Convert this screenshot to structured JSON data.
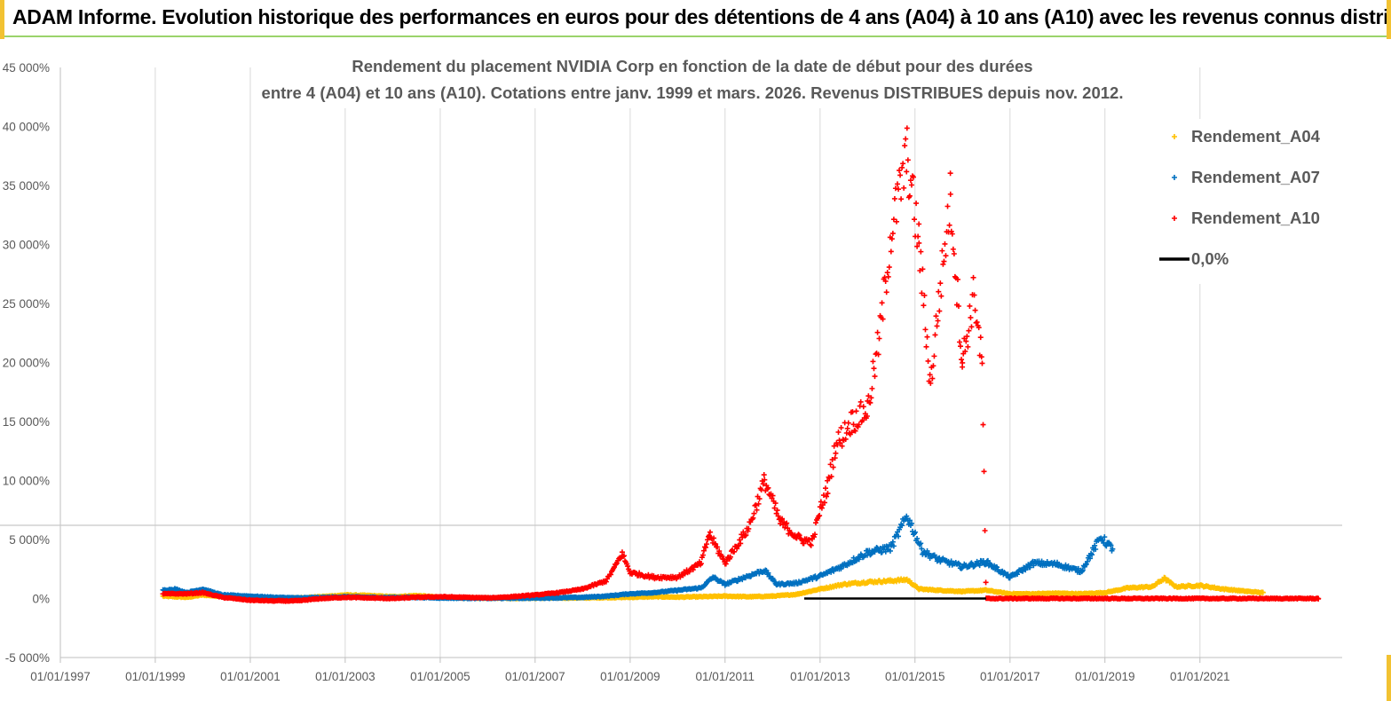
{
  "banner": {
    "title": "ADAM Informe. Evolution historique des performances en euros pour des détentions de 4 ans (A04) à 10 ans (A10) avec les revenus connus distribués"
  },
  "colors": {
    "A04": "#ffc000",
    "A07": "#0070c0",
    "A10": "#ff0000",
    "zero": "#000000",
    "grid": "#d9d9d9",
    "banner_border": "#9bd36b"
  },
  "chart_data": {
    "type": "scatter",
    "title_line1": "Rendement du placement NVIDIA Corp en fonction de la date de début pour des durées",
    "title_line2": "entre 4 (A04) et 10 ans (A10).  Cotations entre janv. 1999 et mars. 2026. Revenus DISTRIBUES depuis nov. 2012.",
    "y_ticks": [
      "45 000%",
      "40 000%",
      "35 000%",
      "30 000%",
      "25 000%",
      "20 000%",
      "15 000%",
      "10 000%",
      "5 000%",
      "0%",
      "-5 000%"
    ],
    "x_ticks": [
      "01/01/1997",
      "01/01/1999",
      "01/01/2001",
      "01/01/2003",
      "01/01/2005",
      "01/01/2007",
      "01/01/2009",
      "01/01/2011",
      "01/01/2013",
      "01/01/2015",
      "01/01/2017",
      "01/01/2019",
      "01/01/2021"
    ],
    "ylim": [
      -5000,
      45000
    ],
    "xlim": [
      "1997-01-01",
      "2023-12-31"
    ],
    "legend_position": "top-right",
    "grid": "vertical",
    "series": [
      {
        "name": "Rendement_A04",
        "marker": "+",
        "points": [
          [
            "1999-03-01",
            200
          ],
          [
            "1999-09-01",
            100
          ],
          [
            "2000-01-01",
            300
          ],
          [
            "2000-07-01",
            150
          ],
          [
            "2001-01-01",
            100
          ],
          [
            "2001-07-01",
            0
          ],
          [
            "2002-01-01",
            50
          ],
          [
            "2002-07-01",
            150
          ],
          [
            "2003-01-01",
            300
          ],
          [
            "2003-07-01",
            250
          ],
          [
            "2004-01-01",
            150
          ],
          [
            "2004-07-01",
            250
          ],
          [
            "2005-01-01",
            100
          ],
          [
            "2005-07-01",
            50
          ],
          [
            "2006-01-01",
            50
          ],
          [
            "2006-07-01",
            20
          ],
          [
            "2007-01-01",
            30
          ],
          [
            "2007-07-01",
            50
          ],
          [
            "2008-01-01",
            50
          ],
          [
            "2008-07-01",
            80
          ],
          [
            "2009-01-01",
            100
          ],
          [
            "2009-07-01",
            150
          ],
          [
            "2010-01-01",
            120
          ],
          [
            "2010-07-01",
            150
          ],
          [
            "2011-01-01",
            200
          ],
          [
            "2011-07-01",
            150
          ],
          [
            "2012-01-01",
            200
          ],
          [
            "2012-07-01",
            350
          ],
          [
            "2013-01-01",
            800
          ],
          [
            "2013-07-01",
            1200
          ],
          [
            "2014-01-01",
            1400
          ],
          [
            "2014-07-01",
            1500
          ],
          [
            "2014-11-01",
            1600
          ],
          [
            "2015-02-01",
            800
          ],
          [
            "2015-07-01",
            700
          ],
          [
            "2016-01-01",
            600
          ],
          [
            "2016-07-01",
            700
          ],
          [
            "2017-01-01",
            400
          ],
          [
            "2017-07-01",
            400
          ],
          [
            "2018-01-01",
            450
          ],
          [
            "2018-07-01",
            400
          ],
          [
            "2019-01-01",
            500
          ],
          [
            "2019-07-01",
            900
          ],
          [
            "2020-01-01",
            1000
          ],
          [
            "2020-04-01",
            1700
          ],
          [
            "2020-07-01",
            1000
          ],
          [
            "2021-01-01",
            1100
          ],
          [
            "2021-07-01",
            800
          ],
          [
            "2022-01-01",
            600
          ],
          [
            "2022-05-01",
            500
          ]
        ]
      },
      {
        "name": "Rendement_A07",
        "marker": "+",
        "points": [
          [
            "1999-03-01",
            700
          ],
          [
            "1999-06-01",
            800
          ],
          [
            "1999-09-01",
            500
          ],
          [
            "2000-01-01",
            800
          ],
          [
            "2000-06-01",
            300
          ],
          [
            "2001-01-01",
            200
          ],
          [
            "2001-07-01",
            100
          ],
          [
            "2002-01-01",
            50
          ],
          [
            "2002-07-01",
            80
          ],
          [
            "2003-01-01",
            150
          ],
          [
            "2003-07-01",
            100
          ],
          [
            "2004-01-01",
            80
          ],
          [
            "2004-07-01",
            100
          ],
          [
            "2005-01-01",
            50
          ],
          [
            "2005-07-01",
            30
          ],
          [
            "2006-01-01",
            20
          ],
          [
            "2006-07-01",
            30
          ],
          [
            "2007-01-01",
            40
          ],
          [
            "2007-07-01",
            60
          ],
          [
            "2008-01-01",
            100
          ],
          [
            "2008-07-01",
            200
          ],
          [
            "2009-01-01",
            400
          ],
          [
            "2009-07-01",
            500
          ],
          [
            "2010-01-01",
            700
          ],
          [
            "2010-07-01",
            900
          ],
          [
            "2010-10-01",
            1800
          ],
          [
            "2011-01-01",
            1200
          ],
          [
            "2011-06-01",
            1800
          ],
          [
            "2011-11-01",
            2400
          ],
          [
            "2012-02-01",
            1200
          ],
          [
            "2012-07-01",
            1300
          ],
          [
            "2013-01-01",
            1900
          ],
          [
            "2013-07-01",
            2800
          ],
          [
            "2014-01-01",
            3900
          ],
          [
            "2014-07-01",
            4300
          ],
          [
            "2014-11-01",
            7000
          ],
          [
            "2015-03-01",
            4000
          ],
          [
            "2015-07-01",
            3300
          ],
          [
            "2016-01-01",
            2700
          ],
          [
            "2016-07-01",
            3100
          ],
          [
            "2017-01-01",
            1800
          ],
          [
            "2017-07-01",
            3000
          ],
          [
            "2018-01-01",
            2900
          ],
          [
            "2018-07-01",
            2300
          ],
          [
            "2018-12-01",
            5200
          ],
          [
            "2019-03-01",
            4200
          ]
        ]
      },
      {
        "name": "Rendement_A10",
        "marker": "+",
        "points": [
          [
            "1999-03-01",
            400
          ],
          [
            "1999-09-01",
            400
          ],
          [
            "2000-01-01",
            500
          ],
          [
            "2000-06-01",
            100
          ],
          [
            "2001-01-01",
            -150
          ],
          [
            "2001-07-01",
            -200
          ],
          [
            "2002-01-01",
            -200
          ],
          [
            "2002-07-01",
            0
          ],
          [
            "2003-01-01",
            100
          ],
          [
            "2003-07-01",
            50
          ],
          [
            "2004-01-01",
            0
          ],
          [
            "2004-07-01",
            100
          ],
          [
            "2005-01-01",
            150
          ],
          [
            "2005-07-01",
            100
          ],
          [
            "2006-01-01",
            50
          ],
          [
            "2006-07-01",
            150
          ],
          [
            "2007-01-01",
            300
          ],
          [
            "2007-07-01",
            500
          ],
          [
            "2008-01-01",
            800
          ],
          [
            "2008-07-01",
            1500
          ],
          [
            "2008-09-01",
            2600
          ],
          [
            "2008-11-01",
            3800
          ],
          [
            "2009-01-01",
            2200
          ],
          [
            "2009-07-01",
            1800
          ],
          [
            "2010-01-01",
            1800
          ],
          [
            "2010-07-01",
            3000
          ],
          [
            "2010-09-01",
            5500
          ],
          [
            "2011-01-01",
            3000
          ],
          [
            "2011-07-01",
            6000
          ],
          [
            "2011-11-01",
            10000
          ],
          [
            "2012-03-01",
            6500
          ],
          [
            "2012-08-01",
            5000
          ],
          [
            "2012-11-01",
            4800
          ],
          [
            "2013-01-01",
            7500
          ],
          [
            "2013-03-01",
            9500
          ],
          [
            "2013-05-01",
            13000
          ],
          [
            "2013-09-01",
            15000
          ],
          [
            "2014-01-01",
            16000
          ],
          [
            "2014-04-01",
            22000
          ],
          [
            "2014-07-01",
            31000
          ],
          [
            "2014-11-01",
            37500
          ],
          [
            "2015-02-01",
            30000
          ],
          [
            "2015-05-01",
            18000
          ],
          [
            "2015-07-01",
            25000
          ],
          [
            "2015-10-01",
            34000
          ],
          [
            "2016-01-01",
            20000
          ],
          [
            "2016-04-01",
            26000
          ],
          [
            "2016-06-01",
            19500
          ],
          [
            "2016-07-01",
            0
          ],
          [
            "2017-07-01",
            0
          ],
          [
            "2018-07-01",
            0
          ],
          [
            "2019-07-01",
            0
          ],
          [
            "2020-07-01",
            0
          ],
          [
            "2021-07-01",
            0
          ],
          [
            "2022-07-01",
            0
          ],
          [
            "2023-07-01",
            0
          ]
        ]
      }
    ],
    "reference_line": {
      "name": "0,0%",
      "value": 0,
      "from": "2012-09-01",
      "to": "2016-07-01"
    }
  }
}
